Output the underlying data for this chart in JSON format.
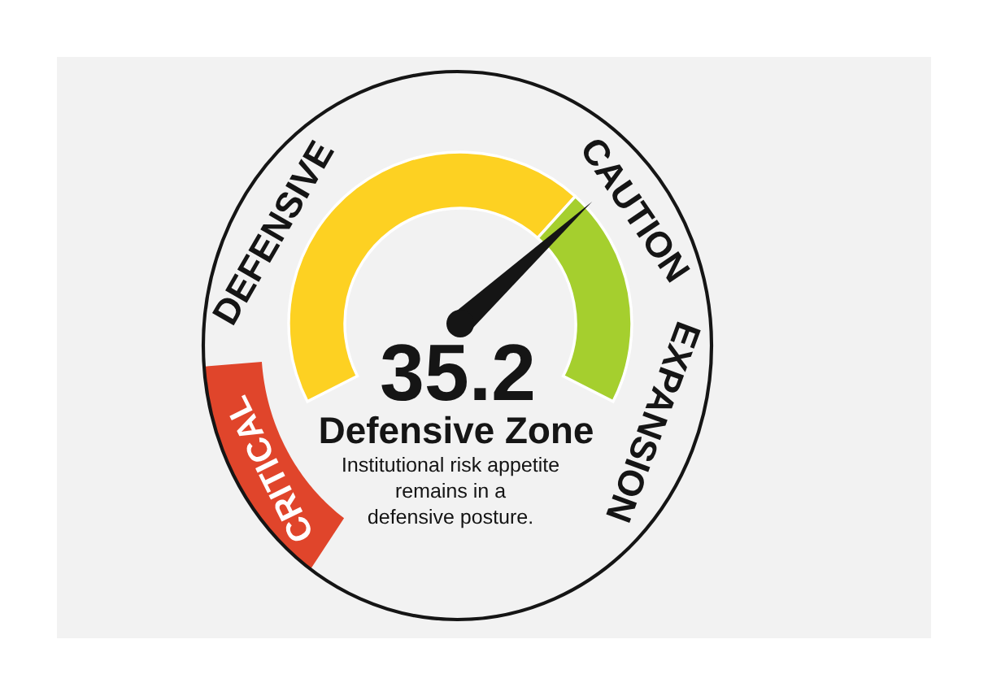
{
  "chart_data": {
    "type": "donut",
    "categories": [
      "DEFENSIVE",
      "CAUTION"
    ],
    "values": [
      68,
      32
    ],
    "colors": [
      "#fdd122",
      "#a5cf2e"
    ],
    "needle": "CAUTION",
    "annotations": [
      "35.2",
      "Defensive Zone",
      "Institutional risk appetite\nremains in a\ndefensive posture.",
      "EXPANSION",
      "CRITICAL"
    ]
  }
}
